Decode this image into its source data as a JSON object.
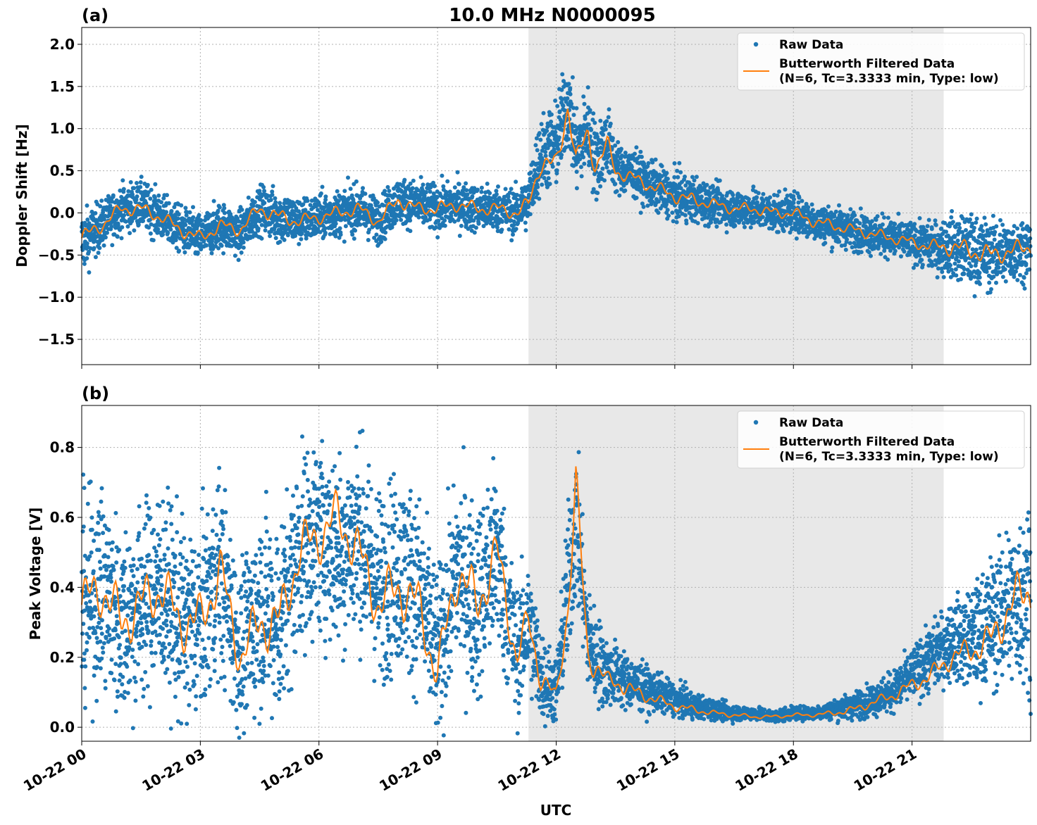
{
  "title": "10.0 MHz N0000095",
  "xlabel": "UTC",
  "colors": {
    "raw": "#1f77b4",
    "filtered": "#ff7f0e",
    "shade": "#e8e8e8",
    "grid": "#b0b0b0"
  },
  "x_ticks": [
    "10-22 00",
    "10-22 03",
    "10-22 06",
    "10-22 09",
    "10-22 12",
    "10-22 15",
    "10-22 18",
    "10-22 21"
  ],
  "chart_data": [
    {
      "type": "scatter",
      "panel": "(a)",
      "title": "10.0 MHz N0000095",
      "xlabel": "",
      "ylabel": "Doppler Shift [Hz]",
      "x_unit": "hours UTC since 10-22 00:00",
      "xlim": [
        0,
        24
      ],
      "ylim": [
        -1.8,
        2.2
      ],
      "yticks": [
        2.0,
        1.5,
        1.0,
        0.5,
        0.0,
        -0.5,
        -1.0,
        -1.5
      ],
      "ytick_labels": [
        "2.0",
        "1.5",
        "1.0",
        "0.5",
        "0.0",
        "−0.5",
        "−1.0",
        "−1.5"
      ],
      "shaded_x": [
        11.3,
        21.8
      ],
      "grid": true,
      "legend_placement": "top-right",
      "legend": [
        "Raw Data",
        "Butterworth Filtered Data",
        "(N=6, Tc=3.3333 min, Type: low)"
      ],
      "series": [
        {
          "name": "Raw Data",
          "style": "points",
          "x": [
            0,
            0.5,
            1,
            1.5,
            2,
            2.5,
            3,
            3.5,
            4,
            4.5,
            5,
            5.5,
            6,
            6.5,
            7,
            7.5,
            8,
            8.5,
            9,
            9.5,
            10,
            10.5,
            11,
            11.3,
            11.6,
            12,
            12.3,
            12.5,
            12.8,
            13,
            13.3,
            13.5,
            14,
            14.5,
            15,
            15.5,
            16,
            16.5,
            17,
            17.5,
            18,
            18.5,
            19,
            19.5,
            20,
            20.5,
            21,
            21.5,
            22,
            22.5,
            23,
            23.5,
            24
          ],
          "y": [
            -0.35,
            -0.15,
            0.05,
            0.1,
            -0.05,
            -0.2,
            -0.3,
            -0.15,
            -0.25,
            0.05,
            -0.05,
            -0.1,
            -0.05,
            0.0,
            0.05,
            -0.1,
            0.15,
            0.1,
            0.05,
            0.1,
            0.05,
            0.05,
            0.0,
            0.15,
            0.7,
            0.8,
            1.35,
            0.7,
            1.0,
            0.6,
            0.85,
            0.55,
            0.45,
            0.3,
            0.2,
            0.15,
            0.1,
            0.05,
            0.05,
            0.0,
            0.0,
            -0.1,
            -0.15,
            -0.2,
            -0.25,
            -0.3,
            -0.35,
            -0.4,
            -0.4,
            -0.45,
            -0.5,
            -0.45,
            -0.4
          ],
          "spread": [
            0.4,
            0.3,
            0.3,
            0.3,
            0.3,
            0.3,
            0.3,
            0.3,
            0.3,
            0.3,
            0.35,
            0.3,
            0.3,
            0.3,
            0.3,
            0.3,
            0.3,
            0.3,
            0.3,
            0.3,
            0.3,
            0.3,
            0.3,
            0.35,
            0.5,
            0.55,
            0.6,
            0.5,
            0.55,
            0.5,
            0.45,
            0.35,
            0.3,
            0.3,
            0.3,
            0.3,
            0.25,
            0.25,
            0.25,
            0.25,
            0.25,
            0.25,
            0.25,
            0.25,
            0.25,
            0.25,
            0.25,
            0.3,
            0.4,
            0.45,
            0.45,
            0.4,
            0.4
          ]
        },
        {
          "name": "Butterworth Filtered Data",
          "style": "line",
          "x": [
            0,
            0.5,
            1,
            1.5,
            2,
            2.5,
            3,
            3.5,
            4,
            4.5,
            5,
            5.5,
            6,
            6.5,
            7,
            7.5,
            8,
            8.5,
            9,
            9.5,
            10,
            10.5,
            11,
            11.3,
            11.6,
            12,
            12.3,
            12.5,
            12.8,
            13,
            13.3,
            13.5,
            14,
            14.5,
            15,
            15.5,
            16,
            16.5,
            17,
            17.5,
            18,
            18.5,
            19,
            19.5,
            20,
            20.5,
            21,
            21.5,
            22,
            22.5,
            23,
            23.5,
            24
          ],
          "y": [
            -0.3,
            -0.15,
            0.05,
            0.05,
            -0.05,
            -0.2,
            -0.3,
            -0.15,
            -0.2,
            0.05,
            -0.05,
            -0.1,
            -0.05,
            0.0,
            0.05,
            -0.1,
            0.15,
            0.05,
            0.05,
            0.1,
            0.05,
            0.05,
            0.0,
            0.1,
            0.6,
            0.55,
            1.3,
            0.6,
            0.95,
            0.55,
            0.8,
            0.5,
            0.4,
            0.3,
            0.2,
            0.15,
            0.1,
            0.05,
            0.05,
            0.0,
            0.0,
            -0.1,
            -0.15,
            -0.2,
            -0.25,
            -0.3,
            -0.35,
            -0.4,
            -0.4,
            -0.45,
            -0.5,
            -0.45,
            -0.4
          ]
        }
      ]
    },
    {
      "type": "scatter",
      "panel": "(b)",
      "title": "",
      "xlabel": "UTC",
      "ylabel": "Peak Voltage [V]",
      "x_unit": "hours UTC since 10-22 00:00",
      "xlim": [
        0,
        24
      ],
      "ylim": [
        -0.04,
        0.92
      ],
      "yticks": [
        0.0,
        0.2,
        0.4,
        0.6,
        0.8
      ],
      "ytick_labels": [
        "0.0",
        "0.2",
        "0.4",
        "0.6",
        "0.8"
      ],
      "shaded_x": [
        11.3,
        21.8
      ],
      "grid": true,
      "legend_placement": "top-right",
      "legend": [
        "Raw Data",
        "Butterworth Filtered Data",
        "(N=6, Tc=3.3333 min, Type: low)"
      ],
      "series": [
        {
          "name": "Raw Data",
          "style": "points",
          "x": [
            0,
            0.5,
            1,
            1.5,
            2,
            2.5,
            3,
            3.5,
            4,
            4.5,
            5,
            5.5,
            6,
            6.5,
            7,
            7.5,
            8,
            8.5,
            9,
            9.5,
            10,
            10.5,
            11,
            11.3,
            11.6,
            12,
            12.3,
            12.5,
            12.8,
            13,
            13.3,
            13.5,
            14,
            14.5,
            15,
            15.5,
            16,
            16.5,
            17,
            17.5,
            18,
            18.5,
            19,
            19.5,
            20,
            20.5,
            21,
            21.5,
            22,
            22.5,
            23,
            23.5,
            24
          ],
          "y": [
            0.35,
            0.4,
            0.3,
            0.35,
            0.4,
            0.3,
            0.3,
            0.45,
            0.2,
            0.35,
            0.3,
            0.5,
            0.55,
            0.5,
            0.55,
            0.4,
            0.45,
            0.4,
            0.2,
            0.45,
            0.35,
            0.5,
            0.2,
            0.3,
            0.15,
            0.1,
            0.4,
            0.6,
            0.25,
            0.2,
            0.15,
            0.15,
            0.12,
            0.1,
            0.08,
            0.06,
            0.05,
            0.04,
            0.04,
            0.03,
            0.04,
            0.04,
            0.05,
            0.06,
            0.08,
            0.1,
            0.15,
            0.2,
            0.25,
            0.25,
            0.3,
            0.35,
            0.4
          ],
          "spread": [
            0.3,
            0.3,
            0.3,
            0.3,
            0.3,
            0.3,
            0.3,
            0.3,
            0.25,
            0.3,
            0.3,
            0.3,
            0.3,
            0.3,
            0.3,
            0.3,
            0.3,
            0.3,
            0.25,
            0.3,
            0.3,
            0.3,
            0.2,
            0.2,
            0.15,
            0.1,
            0.25,
            0.25,
            0.15,
            0.15,
            0.1,
            0.1,
            0.08,
            0.06,
            0.05,
            0.04,
            0.03,
            0.025,
            0.02,
            0.02,
            0.02,
            0.02,
            0.03,
            0.04,
            0.05,
            0.06,
            0.08,
            0.1,
            0.12,
            0.15,
            0.2,
            0.25,
            0.3
          ]
        },
        {
          "name": "Butterworth Filtered Data",
          "style": "line",
          "x": [
            0,
            0.5,
            1,
            1.5,
            2,
            2.5,
            3,
            3.5,
            4,
            4.5,
            5,
            5.5,
            6,
            6.5,
            7,
            7.5,
            8,
            8.5,
            9,
            9.5,
            10,
            10.5,
            11,
            11.3,
            11.6,
            12,
            12.3,
            12.5,
            12.8,
            13,
            13.3,
            13.5,
            14,
            14.5,
            15,
            15.5,
            16,
            16.5,
            17,
            17.5,
            18,
            18.5,
            19,
            19.5,
            20,
            20.5,
            21,
            21.5,
            22,
            22.5,
            23,
            23.5,
            24
          ],
          "y": [
            0.35,
            0.4,
            0.3,
            0.35,
            0.4,
            0.3,
            0.3,
            0.45,
            0.2,
            0.3,
            0.3,
            0.5,
            0.55,
            0.6,
            0.5,
            0.35,
            0.4,
            0.35,
            0.15,
            0.45,
            0.35,
            0.5,
            0.2,
            0.3,
            0.15,
            0.08,
            0.35,
            0.7,
            0.2,
            0.18,
            0.13,
            0.13,
            0.1,
            0.08,
            0.06,
            0.05,
            0.04,
            0.035,
            0.03,
            0.03,
            0.035,
            0.035,
            0.04,
            0.05,
            0.07,
            0.09,
            0.12,
            0.15,
            0.2,
            0.22,
            0.25,
            0.35,
            0.4
          ]
        }
      ]
    }
  ]
}
